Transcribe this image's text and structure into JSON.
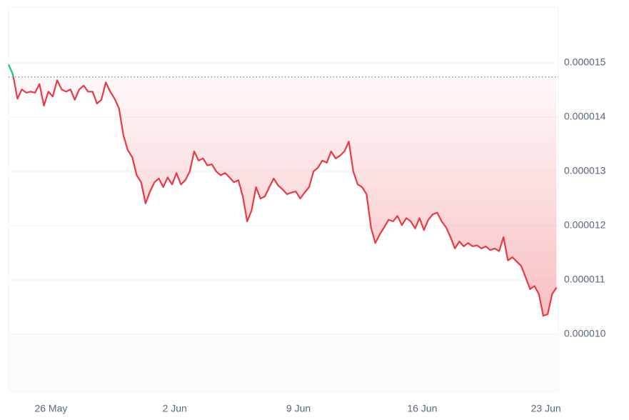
{
  "chart_data": {
    "type": "line",
    "x": [
      23.6,
      23.85,
      24.1,
      24.35,
      24.6,
      24.85,
      25.1,
      25.35,
      25.6,
      25.85,
      26.1,
      26.35,
      26.6,
      26.85,
      27.1,
      27.35,
      27.6,
      27.85,
      28.1,
      28.35,
      28.6,
      28.85,
      29.1,
      29.35,
      29.6,
      29.85,
      30.1,
      30.35,
      30.6,
      30.85,
      31.1,
      31.35,
      31.6,
      31.85,
      32.1,
      32.35,
      32.6,
      32.85,
      33.1,
      33.35,
      33.6,
      33.85,
      34.1,
      34.35,
      34.6,
      34.85,
      35.1,
      35.35,
      35.6,
      35.85,
      36.1,
      36.35,
      36.6,
      36.85,
      37.1,
      37.35,
      37.6,
      37.85,
      38.1,
      38.35,
      38.6,
      38.85,
      39.1,
      39.35,
      39.6,
      39.85,
      40.1,
      40.35,
      40.6,
      40.85,
      41.1,
      41.35,
      41.6,
      41.85,
      42.1,
      42.35,
      42.6,
      42.85,
      43.1,
      43.35,
      43.6,
      43.85,
      44.1,
      44.35,
      44.6,
      44.85,
      45.1,
      45.35,
      45.6,
      45.85,
      46.1,
      46.35,
      46.6,
      46.85,
      47.1,
      47.35,
      47.6,
      47.85,
      48.1,
      48.35,
      48.6,
      48.85,
      49.1,
      49.35,
      49.6,
      49.85,
      50.1,
      50.35,
      50.6,
      50.85,
      51.1,
      51.35,
      51.6,
      51.85,
      52.1,
      52.35,
      52.6,
      52.85,
      53.1,
      53.35,
      53.6,
      53.85,
      54.1,
      54.35,
      54.6
    ],
    "values": [
      1.497e-05,
      1.478e-05,
      1.434e-05,
      1.451e-05,
      1.445e-05,
      1.447e-05,
      1.445e-05,
      1.461e-05,
      1.421e-05,
      1.447e-05,
      1.438e-05,
      1.468e-05,
      1.451e-05,
      1.447e-05,
      1.451e-05,
      1.432e-05,
      1.451e-05,
      1.458e-05,
      1.447e-05,
      1.447e-05,
      1.425e-05,
      1.432e-05,
      1.464e-05,
      1.447e-05,
      1.434e-05,
      1.416e-05,
      1.366e-05,
      1.339e-05,
      1.326e-05,
      1.293e-05,
      1.28e-05,
      1.241e-05,
      1.263e-05,
      1.28e-05,
      1.287e-05,
      1.271e-05,
      1.289e-05,
      1.276e-05,
      1.297e-05,
      1.276e-05,
      1.284e-05,
      1.3e-05,
      1.337e-05,
      1.32e-05,
      1.324e-05,
      1.311e-05,
      1.313e-05,
      1.3e-05,
      1.293e-05,
      1.297e-05,
      1.289e-05,
      1.28e-05,
      1.284e-05,
      1.254e-05,
      1.208e-05,
      1.228e-05,
      1.271e-05,
      1.25e-05,
      1.254e-05,
      1.271e-05,
      1.287e-05,
      1.274e-05,
      1.267e-05,
      1.258e-05,
      1.261e-05,
      1.263e-05,
      1.25e-05,
      1.261e-05,
      1.271e-05,
      1.3e-05,
      1.307e-05,
      1.32e-05,
      1.316e-05,
      1.337e-05,
      1.324e-05,
      1.329e-05,
      1.337e-05,
      1.355e-05,
      1.3e-05,
      1.276e-05,
      1.271e-05,
      1.258e-05,
      1.197e-05,
      1.168e-05,
      1.184e-05,
      1.197e-05,
      1.211e-05,
      1.208e-05,
      1.218e-05,
      1.201e-05,
      1.214e-05,
      1.208e-05,
      1.195e-05,
      1.214e-05,
      1.192e-05,
      1.211e-05,
      1.221e-05,
      1.224e-05,
      1.208e-05,
      1.197e-05,
      1.179e-05,
      1.158e-05,
      1.171e-05,
      1.162e-05,
      1.168e-05,
      1.162e-05,
      1.164e-05,
      1.158e-05,
      1.162e-05,
      1.155e-05,
      1.158e-05,
      1.153e-05,
      1.179e-05,
      1.136e-05,
      1.142e-05,
      1.134e-05,
      1.126e-05,
      1.105e-05,
      1.083e-05,
      1.089e-05,
      1.074e-05,
      1.034e-05,
      1.037e-05,
      1.074e-05,
      1.086e-05
    ],
    "color": "#ea3943",
    "up_color": "#16c784",
    "baseline": 1.474e-05,
    "xlim": [
      23.6,
      54.7
    ],
    "xticks": [
      {
        "value": 26,
        "label": "26 May"
      },
      {
        "value": 33,
        "label": "2 Jun"
      },
      {
        "value": 40,
        "label": "9 Jun"
      },
      {
        "value": 47,
        "label": "16 Jun"
      },
      {
        "value": 54,
        "label": "23 Jun"
      }
    ],
    "ylim": [
      1e-05,
      1.6e-05
    ],
    "yticks": [
      {
        "value": 1e-05,
        "label": "0.000010"
      },
      1.1e-05,
      1.2e-05,
      1.3e-05,
      1.4e-05,
      1.5e-05
    ],
    "grid": true
  }
}
